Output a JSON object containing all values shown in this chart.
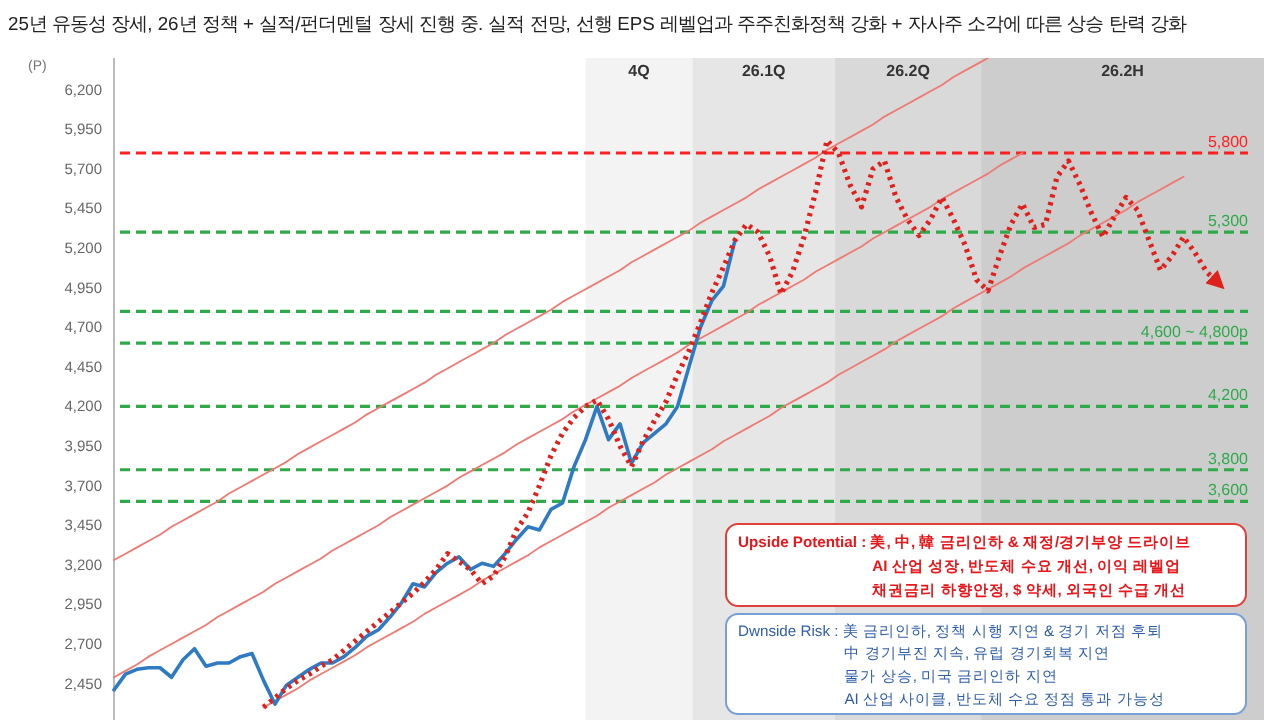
{
  "chart_data": {
    "type": "line",
    "title": "25년 유동성 장세, 26년 정책 + 실적/펀더멘털 장세 진행 중. 실적 전망, 선행 EPS 레벨업과 주주친화정책 강화 + 자사주 소각에 따른 상승 탄력 강화",
    "ylabel": "(P)",
    "tick_labels": "y",
    "categories": [
      null,
      null,
      null,
      null,
      null,
      null,
      null,
      null,
      null,
      null,
      null,
      null,
      null,
      null,
      null,
      null,
      null,
      null,
      null,
      null,
      null,
      null,
      null,
      null,
      null,
      null,
      null,
      null,
      null,
      null,
      null,
      null,
      null,
      null,
      null,
      null,
      null,
      null,
      null,
      null,
      null,
      null,
      null,
      null,
      null,
      null,
      null,
      null,
      null,
      null,
      null,
      null,
      null,
      null,
      null,
      null,
      null,
      null,
      null,
      null,
      null,
      null,
      null,
      null,
      null,
      null,
      null,
      null,
      null,
      null,
      null,
      null,
      null,
      null,
      null,
      null,
      null,
      null,
      null,
      null,
      null,
      null,
      null,
      null,
      null,
      null,
      null,
      null,
      null,
      null,
      null,
      null,
      null,
      null,
      null,
      null,
      null,
      null,
      null,
      null,
      null
    ],
    "ylim": [
      2220,
      6400
    ],
    "yticks": [
      {
        "value": 2450,
        "label": "2,450"
      },
      {
        "value": 2700,
        "label": "2,700"
      },
      {
        "value": 2950,
        "label": "2,950"
      },
      {
        "value": 3200,
        "label": "3,200"
      },
      {
        "value": 3450,
        "label": "3,450"
      },
      {
        "value": 3700,
        "label": "3,700"
      },
      {
        "value": 3950,
        "label": "3,950"
      },
      {
        "value": 4200,
        "label": "4,200"
      },
      {
        "value": 4450,
        "label": "4,450"
      },
      {
        "value": 4700,
        "label": "4,700"
      },
      {
        "value": 4950,
        "label": "4,950"
      },
      {
        "value": 5200,
        "label": "5,200"
      },
      {
        "value": 5450,
        "label": "5,450"
      },
      {
        "value": 5700,
        "label": "5,700"
      },
      {
        "value": 5950,
        "label": "5,950"
      },
      {
        "value": 6200,
        "label": "6,200"
      }
    ],
    "ref_lines": [
      {
        "axis": "y",
        "value": 5800,
        "label": "5,800",
        "color": "#ff2020",
        "line_style": "dashed"
      },
      {
        "axis": "y",
        "value": 5300,
        "label": "5,300",
        "color": "#2eaa4a",
        "line_style": "dashed"
      },
      {
        "axis": "y",
        "value": 4800,
        "color": "#2eaa4a",
        "line_style": "dashed"
      },
      {
        "axis": "y",
        "value": 4600,
        "label": "4,600 ~ 4,800p",
        "color": "#2eaa4a",
        "line_style": "dashed"
      },
      {
        "axis": "y",
        "value": 4200,
        "label": "4,200",
        "color": "#2eaa4a",
        "line_style": "dashed"
      },
      {
        "axis": "y",
        "value": 3800,
        "label": "3,800",
        "color": "#2eaa4a",
        "line_style": "dashed"
      },
      {
        "axis": "y",
        "value": 3600,
        "label": "3,600",
        "color": "#2eaa4a",
        "line_style": "dashed"
      }
    ],
    "series": [
      {
        "type": "line",
        "color": "#ee7a72",
        "line_style": "solid",
        "values": [
          3230,
          3270,
          3310,
          3350,
          3390,
          3440,
          3480,
          3520,
          3560,
          3600,
          3650,
          3690,
          3730,
          3770,
          3810,
          3850,
          3900,
          3940,
          3980,
          4020,
          4060,
          4100,
          4150,
          4190,
          4230,
          4270,
          4310,
          4350,
          4400,
          4440,
          4480,
          4520,
          4560,
          4600,
          4650,
          4690,
          4730,
          4770,
          4810,
          4860,
          4900,
          4940,
          4980,
          5020,
          5060,
          5110,
          5150,
          5190,
          5230,
          5270,
          5310,
          5360,
          5400,
          5440,
          5480,
          5520,
          5570,
          5610,
          5650,
          5690,
          5730,
          5770,
          5820,
          5860,
          5900,
          5940,
          5980,
          6030,
          6070,
          6110,
          6150,
          6190,
          6230,
          6280,
          6320,
          6360,
          6400,
          null,
          null,
          null,
          null,
          null,
          null,
          null,
          null,
          null,
          null,
          null,
          null,
          null,
          null,
          null,
          null,
          null,
          null,
          null,
          null,
          null,
          null,
          null,
          null
        ]
      },
      {
        "type": "line",
        "color": "#ee7a72",
        "line_style": "solid",
        "values": [
          2490,
          2530,
          2570,
          2620,
          2660,
          2700,
          2740,
          2780,
          2820,
          2870,
          2910,
          2950,
          2990,
          3030,
          3080,
          3120,
          3160,
          3200,
          3240,
          3290,
          3330,
          3370,
          3410,
          3450,
          3500,
          3540,
          3580,
          3620,
          3660,
          3700,
          3750,
          3790,
          3830,
          3870,
          3910,
          3960,
          4000,
          4040,
          4080,
          4120,
          4170,
          4210,
          4250,
          4290,
          4330,
          4380,
          4420,
          4460,
          4500,
          4540,
          4590,
          4630,
          4670,
          4710,
          4750,
          4790,
          4840,
          4880,
          4920,
          4960,
          5000,
          5050,
          5090,
          5130,
          5170,
          5210,
          5260,
          5300,
          5340,
          5380,
          5420,
          5460,
          5510,
          5550,
          5590,
          5630,
          5670,
          5720,
          5760,
          5800,
          null,
          null,
          null,
          null,
          null,
          null,
          null,
          null,
          null,
          null,
          null,
          null,
          null,
          null,
          null,
          null,
          null,
          null,
          null,
          null,
          null
        ]
      },
      {
        "type": "line",
        "color": "#ee7a72",
        "line_style": "solid",
        "values": [
          null,
          null,
          null,
          null,
          null,
          null,
          null,
          null,
          null,
          null,
          null,
          null,
          null,
          2300,
          2340,
          2380,
          2420,
          2470,
          2510,
          2550,
          2590,
          2630,
          2680,
          2720,
          2760,
          2800,
          2840,
          2890,
          2930,
          2970,
          3010,
          3050,
          3100,
          3140,
          3180,
          3220,
          3260,
          3310,
          3350,
          3390,
          3430,
          3470,
          3510,
          3560,
          3600,
          3640,
          3680,
          3720,
          3770,
          3810,
          3850,
          3890,
          3930,
          3980,
          4020,
          4060,
          4100,
          4140,
          4190,
          4230,
          4270,
          4310,
          4350,
          4400,
          4440,
          4480,
          4520,
          4560,
          4610,
          4650,
          4690,
          4730,
          4770,
          4820,
          4860,
          4900,
          4940,
          4980,
          5020,
          5070,
          5110,
          5150,
          5190,
          5230,
          5280,
          5320,
          5360,
          5400,
          5440,
          5490,
          5530,
          5570,
          5610,
          5650,
          null,
          null,
          null,
          null,
          null,
          null,
          null
        ]
      },
      {
        "type": "line",
        "color": "#2e7bc4",
        "line_style": "solid",
        "values": [
          2410,
          2510,
          2540,
          2550,
          2550,
          2490,
          2600,
          2670,
          2560,
          2580,
          2580,
          2620,
          2640,
          2470,
          2320,
          2440,
          2490,
          2540,
          2580,
          2580,
          2620,
          2680,
          2750,
          2790,
          2870,
          2960,
          3080,
          3060,
          3150,
          3210,
          3250,
          3170,
          3210,
          3190,
          3270,
          3360,
          3440,
          3420,
          3550,
          3590,
          3820,
          3990,
          4200,
          3990,
          4090,
          3840,
          3970,
          4030,
          4090,
          4200,
          4450,
          4700,
          4870,
          4960,
          5250,
          null,
          null,
          null,
          null,
          null,
          null,
          null,
          null,
          null,
          null,
          null,
          null,
          null,
          null,
          null,
          null,
          null,
          null,
          null,
          null,
          null,
          null,
          null,
          null,
          null,
          null,
          null,
          null,
          null,
          null,
          null,
          null,
          null,
          null,
          null,
          null,
          null,
          null,
          null,
          null,
          null,
          null,
          null,
          null,
          null,
          null
        ]
      },
      {
        "type": "line",
        "color": "#e0201b",
        "line_style": "dotted",
        "values": [
          null,
          null,
          null,
          null,
          null,
          null,
          null,
          null,
          null,
          null,
          null,
          null,
          null,
          2300,
          2360,
          2420,
          2470,
          2510,
          2560,
          2600,
          2660,
          2720,
          2780,
          2840,
          2900,
          2960,
          3020,
          3090,
          3170,
          3270,
          3220,
          3170,
          3080,
          3130,
          3250,
          3420,
          3530,
          3700,
          3890,
          4030,
          4130,
          4200,
          4240,
          4120,
          3950,
          3820,
          3980,
          4110,
          4230,
          4400,
          4550,
          4730,
          4920,
          5080,
          5250,
          5350,
          5300,
          5150,
          4910,
          5050,
          5270,
          5550,
          5880,
          5800,
          5600,
          5460,
          5700,
          5750,
          5520,
          5380,
          5280,
          5380,
          5520,
          5380,
          5220,
          5000,
          4930,
          5150,
          5350,
          5480,
          5330,
          5350,
          5650,
          5750,
          5600,
          5420,
          5270,
          5400,
          5520,
          5440,
          5250,
          5060,
          5150,
          5270,
          5170,
          5050,
          4980,
          null,
          null,
          null,
          null
        ]
      }
    ],
    "annotations": [
      "4Q",
      "26.1Q",
      "26.2Q",
      "26.2H",
      "Upside Potential : 美, 中, 韓  금리인하 & 재정/경기부양 드라이브\nAI 산업 성장, 반도체 수요 개선, 이익 레벨업\n채권금리 하향안정, $ 약세, 외국인 수급 개선",
      "Dwnside Risk : 美 금리인하, 정책 시행 지연 & 경기 저점 후퇴\n中 경기부진 지속, 유럽 경기회복 지연\n물가 상승, 미국 금리인하 지연\nAI 산업 사이클, 반도체 수요 정점 통과 가능성"
    ]
  }
}
